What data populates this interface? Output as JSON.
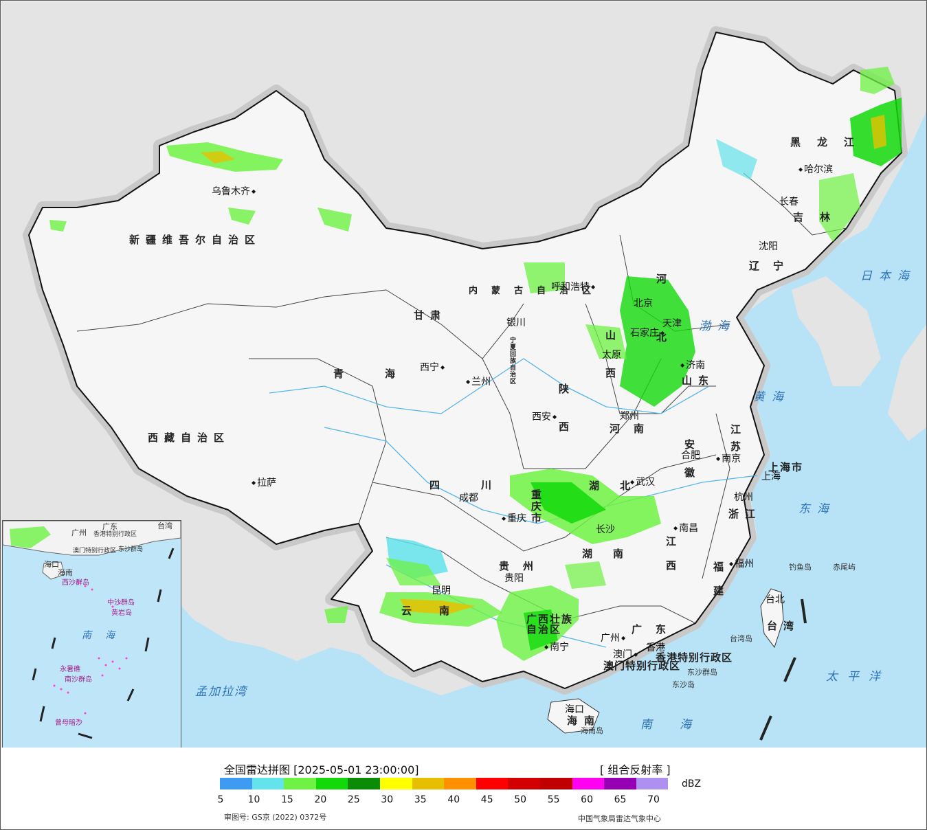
{
  "header": {
    "title": "全国雷达拼图 [2025-05-01 23:00:00]",
    "product": "[ 组合反射率 ]"
  },
  "legend": {
    "unit": "dBZ",
    "colors": [
      "#3d9bf2",
      "#63e3eb",
      "#6ef243",
      "#13d90b",
      "#0a8c07",
      "#ffff00",
      "#e6c000",
      "#ff9000",
      "#ff0000",
      "#d20000",
      "#c00000",
      "#ff00f0",
      "#9600b4",
      "#ad90f0"
    ],
    "ticks": [
      "5",
      "10",
      "15",
      "20",
      "25",
      "30",
      "35",
      "40",
      "45",
      "50",
      "55",
      "60",
      "65",
      "70"
    ]
  },
  "footer": {
    "approval": "审图号: GS京 (2022) 0372号",
    "organization": "中国气象局雷达气象中心"
  },
  "map": {
    "cities": [
      "乌鲁木齐",
      "拉萨",
      "呼和浩特",
      "北京",
      "天津",
      "石家庄",
      "太原",
      "济南",
      "银川",
      "西宁",
      "兰州",
      "西安",
      "郑州",
      "合肥",
      "南京",
      "上海",
      "杭州",
      "武汉",
      "成都",
      "重庆",
      "贵阳",
      "长沙",
      "南昌",
      "福州",
      "台北",
      "昆明",
      "南宁",
      "广州",
      "澳门",
      "香港",
      "海口",
      "哈尔滨",
      "长春",
      "沈阳"
    ],
    "provinces": [
      "新疆维吾尔自治区",
      "西藏自治区",
      "青海",
      "甘肃",
      "内蒙古自治区",
      "宁夏回族自治区",
      "陕西",
      "山西",
      "河北",
      "山东",
      "河南",
      "江苏",
      "安徽",
      "上海市",
      "浙江",
      "湖北",
      "四川",
      "重庆市",
      "贵州",
      "湖南",
      "江西",
      "福建",
      "台湾",
      "云南",
      "广西壮族自治区",
      "广东",
      "香港特别行政区",
      "澳门特别行政区",
      "海南",
      "黑龙江",
      "吉林",
      "辽宁",
      "天津"
    ],
    "seas": [
      "日本海",
      "渤海",
      "黄海",
      "东海",
      "太平洋",
      "南海",
      "孟加拉湾"
    ],
    "islands": [
      "钓鱼岛",
      "赤尾屿",
      "台湾岛",
      "东沙群岛",
      "东沙岛",
      "海南岛"
    ],
    "inset": {
      "labels": [
        "海口",
        "海南",
        "广州",
        "广东",
        "香港特别行政区",
        "澳门特别行政区",
        "东沙群岛",
        "西沙群岛",
        "中沙群岛",
        "黄岩岛",
        "南海",
        "永暑礁",
        "南沙群岛",
        "曾母暗沙",
        "台湾"
      ]
    }
  }
}
